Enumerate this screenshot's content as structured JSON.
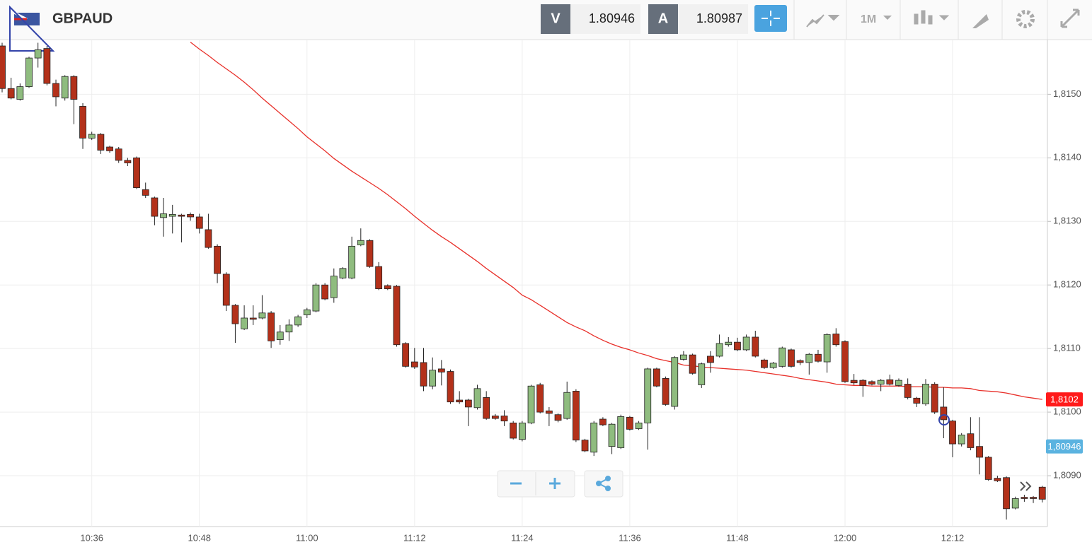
{
  "header": {
    "symbol": "GBPAUD",
    "bid_label": "V",
    "bid": "1.80946",
    "ask_label": "A",
    "ask": "1.80987",
    "timeframe": "1M"
  },
  "chart_data": {
    "type": "candlestick",
    "categories": [
      null,
      null,
      null,
      null,
      null,
      null,
      null,
      null,
      null,
      null,
      "10:36",
      null,
      null,
      null,
      null,
      null,
      null,
      null,
      null,
      null,
      null,
      null,
      "10:48",
      null,
      null,
      null,
      null,
      null,
      null,
      null,
      null,
      null,
      null,
      null,
      "11:00",
      null,
      null,
      null,
      null,
      null,
      null,
      null,
      null,
      null,
      null,
      null,
      "11:12",
      null,
      null,
      null,
      null,
      null,
      null,
      null,
      null,
      null,
      null,
      null,
      "11:24",
      null,
      null,
      null,
      null,
      null,
      null,
      null,
      null,
      null,
      null,
      null,
      "11:36",
      null,
      null,
      null,
      null,
      null,
      null,
      null,
      null,
      null,
      null,
      null,
      "11:48",
      null,
      null,
      null,
      null,
      null,
      null,
      null,
      null,
      null,
      null,
      null,
      "12:00",
      null,
      null,
      null,
      null,
      null,
      null,
      null,
      null,
      null,
      null,
      null,
      "12:12",
      null,
      null,
      null,
      null,
      null,
      null,
      null,
      null,
      null,
      null
    ],
    "open": [
      1.81576,
      1.81509,
      1.81492,
      1.81512,
      1.81557,
      1.81572,
      1.81517,
      1.81494,
      1.81528,
      1.81481,
      1.81431,
      1.81437,
      1.81417,
      1.81414,
      1.81396,
      1.814,
      1.8135,
      1.81337,
      1.81306,
      1.81308,
      1.8131,
      1.81311,
      1.81307,
      1.81287,
      1.81261,
      1.81217,
      1.81168,
      1.81131,
      1.81148,
      1.81148,
      1.81156,
      1.81114,
      1.81126,
      1.81137,
      1.81153,
      1.81159,
      1.812,
      1.8118,
      1.81211,
      1.81211,
      1.81263,
      1.8127,
      1.81229,
      1.81199,
      1.81198,
      1.81108,
      1.81079,
      1.81078,
      1.81041,
      1.81068,
      1.81064,
      1.81019,
      1.81019,
      1.81007,
      1.81023,
      1.80994,
      1.80994,
      1.80983,
      1.80957,
      1.80983,
      1.81043,
      1.81002,
      1.80996,
      1.8099,
      1.81033,
      1.80956,
      1.80937,
      1.80989,
      1.80946,
      1.80944,
      1.80992,
      1.80974,
      1.80983,
      1.81068,
      1.81053,
      1.81009,
      1.81083,
      1.8109,
      1.81043,
      1.81088,
      1.81088,
      1.81106,
      1.8111,
      1.81098,
      1.81118,
      1.81082,
      1.8107,
      1.81072,
      1.81098,
      1.81081,
      1.81078,
      1.81091,
      1.81079,
      1.81123,
      1.81111,
      1.8105,
      1.8105,
      1.81048,
      1.81044,
      1.81051,
      1.81042,
      1.81044,
      1.81022,
      1.81013,
      1.81044,
      1.81008,
      1.80986,
      1.8095,
      1.80966,
      1.80946,
      1.80929,
      1.80896,
      1.80897,
      1.80849,
      1.80866,
      1.80866,
      1.80882
    ],
    "high": [
      1.81581,
      1.81526,
      1.81517,
      1.81559,
      1.81581,
      1.81576,
      1.81523,
      1.8153,
      1.8153,
      1.81486,
      1.81441,
      1.81439,
      1.81419,
      1.81417,
      1.814,
      1.81402,
      1.81361,
      1.81339,
      1.81337,
      1.81326,
      1.81312,
      1.81314,
      1.81312,
      1.81312,
      1.81264,
      1.8122,
      1.8117,
      1.81168,
      1.81168,
      1.81184,
      1.81159,
      1.81137,
      1.81146,
      1.81153,
      1.81164,
      1.81203,
      1.81203,
      1.81226,
      1.81228,
      1.81276,
      1.81289,
      1.81272,
      1.81236,
      1.81201,
      1.812,
      1.8111,
      1.81101,
      1.81101,
      1.81086,
      1.81082,
      1.81067,
      1.81033,
      1.81021,
      1.81043,
      1.81033,
      1.80997,
      1.81003,
      1.80986,
      1.80986,
      1.81043,
      1.81046,
      1.81008,
      1.80998,
      1.81048,
      1.81036,
      1.80958,
      1.80986,
      1.80992,
      1.80983,
      1.80996,
      1.80994,
      1.80986,
      1.8107,
      1.8107,
      1.81056,
      1.81088,
      1.81096,
      1.81092,
      1.81078,
      1.81096,
      1.81122,
      1.81118,
      1.81117,
      1.81122,
      1.81128,
      1.81084,
      1.81079,
      1.81103,
      1.811,
      1.81083,
      1.81093,
      1.81098,
      1.81124,
      1.81132,
      1.81113,
      1.8106,
      1.81052,
      1.8105,
      1.81052,
      1.81059,
      1.81053,
      1.81053,
      1.81024,
      1.81052,
      1.81047,
      1.81039,
      1.80988,
      1.80967,
      1.80992,
      1.80992,
      1.80931,
      1.809,
      1.80899,
      1.80867,
      1.8087,
      1.80868,
      1.80884
    ],
    "low": [
      1.81503,
      1.81492,
      1.8149,
      1.8151,
      1.81542,
      1.81514,
      1.81481,
      1.8149,
      1.81453,
      1.81414,
      1.81428,
      1.81406,
      1.81408,
      1.81392,
      1.81387,
      1.81351,
      1.81337,
      1.81294,
      1.81276,
      1.81281,
      1.81267,
      1.81301,
      1.81281,
      1.81257,
      1.81203,
      1.81159,
      1.81109,
      1.81129,
      1.81137,
      1.81146,
      1.81101,
      1.81106,
      1.81112,
      1.81134,
      1.81148,
      1.81157,
      1.81176,
      1.81172,
      1.81209,
      1.81209,
      1.81261,
      1.81227,
      1.81192,
      1.81192,
      1.81103,
      1.8107,
      1.81068,
      1.81033,
      1.81036,
      1.81042,
      1.81013,
      1.81013,
      1.80978,
      1.81004,
      1.80988,
      1.80988,
      1.80978,
      1.80957,
      1.80954,
      1.80981,
      1.80998,
      1.80978,
      1.80984,
      1.80988,
      1.80953,
      1.80937,
      1.80931,
      1.80978,
      1.80934,
      1.80942,
      1.80971,
      1.80972,
      1.80941,
      1.81039,
      1.8101,
      1.81004,
      1.81081,
      1.81059,
      1.81038,
      1.81062,
      1.81086,
      1.81103,
      1.81096,
      1.81096,
      1.81086,
      1.81068,
      1.81068,
      1.8107,
      1.8107,
      1.81074,
      1.81059,
      1.81078,
      1.81062,
      1.81103,
      1.81046,
      1.81043,
      1.81024,
      1.81042,
      1.81033,
      1.81042,
      1.8104,
      1.8102,
      1.81008,
      1.8101,
      1.80997,
      1.80959,
      1.80929,
      1.80946,
      1.8094,
      1.80902,
      1.80892,
      1.8089,
      1.80831,
      1.80847,
      1.80859,
      1.80857,
      1.80858
    ],
    "close": [
      1.81509,
      1.81494,
      1.81512,
      1.81557,
      1.8157,
      1.81517,
      1.81496,
      1.81528,
      1.81492,
      1.81431,
      1.81437,
      1.81412,
      1.81411,
      1.81396,
      1.81392,
      1.81353,
      1.81341,
      1.81308,
      1.81312,
      1.81311,
      1.81308,
      1.81307,
      1.81289,
      1.81259,
      1.81218,
      1.81168,
      1.81139,
      1.81148,
      1.81146,
      1.81156,
      1.81112,
      1.81126,
      1.81137,
      1.8115,
      1.81161,
      1.812,
      1.81178,
      1.81214,
      1.81226,
      1.81261,
      1.8127,
      1.81229,
      1.81194,
      1.81194,
      1.81106,
      1.81072,
      1.81071,
      1.81041,
      1.81066,
      1.81063,
      1.81016,
      1.81016,
      1.81008,
      1.81037,
      1.8099,
      1.8099,
      1.80986,
      1.80959,
      1.80983,
      1.81041,
      1.81,
      1.80998,
      1.80987,
      1.81031,
      1.80956,
      1.80939,
      1.80983,
      1.8098,
      1.80981,
      1.80993,
      1.80973,
      1.80983,
      1.81068,
      1.81041,
      1.81012,
      1.81086,
      1.8109,
      1.81061,
      1.81076,
      1.81078,
      1.81108,
      1.8111,
      1.81098,
      1.81118,
      1.81088,
      1.8107,
      1.81077,
      1.81101,
      1.81072,
      1.81078,
      1.81091,
      1.8108,
      1.81122,
      1.81106,
      1.81048,
      1.81046,
      1.81042,
      1.81044,
      1.8105,
      1.81044,
      1.8105,
      1.81023,
      1.81014,
      1.81044,
      1.81,
      1.80988,
      1.8095,
      1.80964,
      1.80944,
      1.80929,
      1.80894,
      1.80892,
      1.80848,
      1.80864,
      1.80864,
      1.80864,
      1.80863
    ],
    "up_color": "#8fbc7f",
    "down_color": "#b3311a",
    "moving_average": {
      "color": "#e8302a",
      "values": [
        null,
        null,
        null,
        null,
        null,
        null,
        null,
        null,
        null,
        null,
        null,
        null,
        null,
        null,
        null,
        null,
        null,
        null,
        null,
        null,
        null,
        1.81582,
        1.81571,
        1.81561,
        1.8155,
        1.8154,
        1.8153,
        1.81519,
        1.81507,
        1.81494,
        1.81482,
        1.8147,
        1.81458,
        1.81446,
        1.81433,
        1.81422,
        1.81411,
        1.81399,
        1.81389,
        1.81379,
        1.8137,
        1.81361,
        1.81352,
        1.81342,
        1.81331,
        1.8132,
        1.81308,
        1.81297,
        1.81286,
        1.81276,
        1.81267,
        1.81257,
        1.81247,
        1.81237,
        1.81226,
        1.81216,
        1.81206,
        1.81196,
        1.81184,
        1.81177,
        1.81168,
        1.81159,
        1.8115,
        1.81141,
        1.81134,
        1.81128,
        1.8112,
        1.81113,
        1.81107,
        1.81102,
        1.81098,
        1.81093,
        1.81089,
        1.81084,
        1.81081,
        1.81078,
        1.81074,
        1.81073,
        1.81071,
        1.8107,
        1.81069,
        1.81068,
        1.81067,
        1.81066,
        1.81064,
        1.81062,
        1.8106,
        1.81058,
        1.81056,
        1.81053,
        1.81051,
        1.81049,
        1.81047,
        1.81044,
        1.81043,
        1.81042,
        1.81042,
        1.81041,
        1.81041,
        1.81041,
        1.81041,
        1.8104,
        1.8104,
        1.8104,
        1.81039,
        1.81039,
        1.81038,
        1.81038,
        1.81037,
        1.81034,
        1.81033,
        1.81032,
        1.8103,
        1.81027,
        1.81024,
        1.81022,
        1.8102
      ]
    },
    "ylim": [
      1.8082,
      1.81586
    ],
    "yticks": [
      {
        "value": 1.809,
        "label": "1,8090"
      },
      {
        "value": 1.81,
        "label": "1,8100"
      },
      {
        "value": 1.811,
        "label": "1,8110"
      },
      {
        "value": 1.812,
        "label": "1,8120"
      },
      {
        "value": 1.813,
        "label": "1,8130"
      },
      {
        "value": 1.814,
        "label": "1,8140"
      },
      {
        "value": 1.815,
        "label": "1,8150"
      }
    ],
    "grid": true,
    "price_markers": [
      {
        "value": 1.8102,
        "label": "1,8102",
        "color": "#ff1a1a"
      },
      {
        "value": 1.80946,
        "label": "1,80946",
        "color": "#5bb3e0"
      }
    ]
  }
}
